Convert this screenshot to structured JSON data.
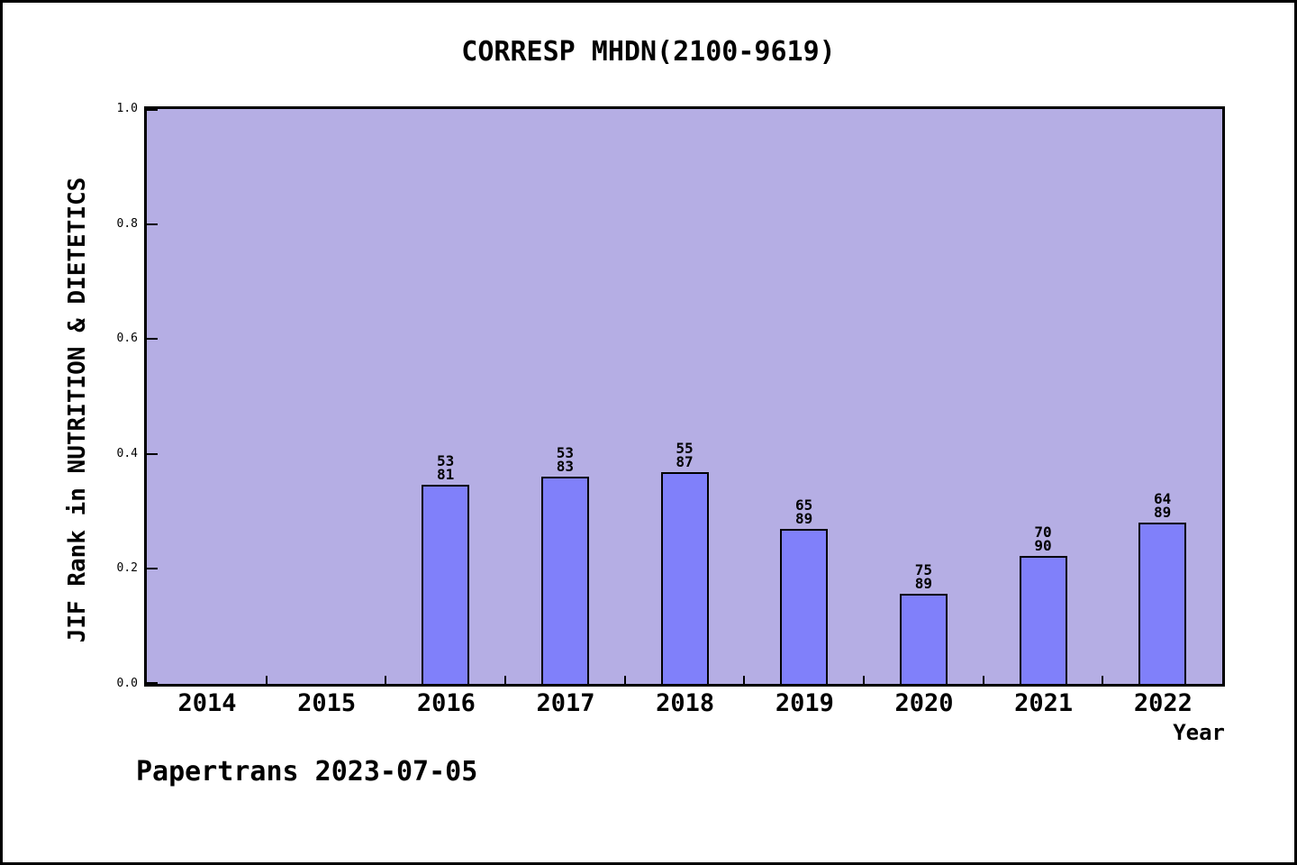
{
  "footer": {
    "text": "Papertrans 2023-07-05"
  },
  "colors": {
    "plot_background": "#b5aee4",
    "bar_fill": "#8080fa",
    "bar_border": "#000000",
    "axis": "#000000",
    "text": "#000000"
  },
  "chart_data": {
    "type": "bar",
    "title": "CORRESP MHDN(2100-9619)",
    "xlabel": "Year",
    "ylabel": "JIF Rank in NUTRITION & DIETETICS",
    "ylim": [
      0.0,
      1.0
    ],
    "ytick_labels": [
      "0.0",
      "0.2",
      "0.4",
      "0.6",
      "0.8",
      "1.0"
    ],
    "grid": false,
    "legend_position": "none",
    "categories": [
      "2014",
      "2015",
      "2016",
      "2017",
      "2018",
      "2019",
      "2020",
      "2021",
      "2022"
    ],
    "bars": [
      {
        "year": "2016",
        "rank": 53,
        "total": 81,
        "value": 0.346
      },
      {
        "year": "2017",
        "rank": 53,
        "total": 83,
        "value": 0.361
      },
      {
        "year": "2018",
        "rank": 55,
        "total": 87,
        "value": 0.368
      },
      {
        "year": "2019",
        "rank": 65,
        "total": 89,
        "value": 0.27
      },
      {
        "year": "2020",
        "rank": 75,
        "total": 89,
        "value": 0.157
      },
      {
        "year": "2021",
        "rank": 70,
        "total": 90,
        "value": 0.222
      },
      {
        "year": "2022",
        "rank": 64,
        "total": 89,
        "value": 0.281
      }
    ]
  }
}
